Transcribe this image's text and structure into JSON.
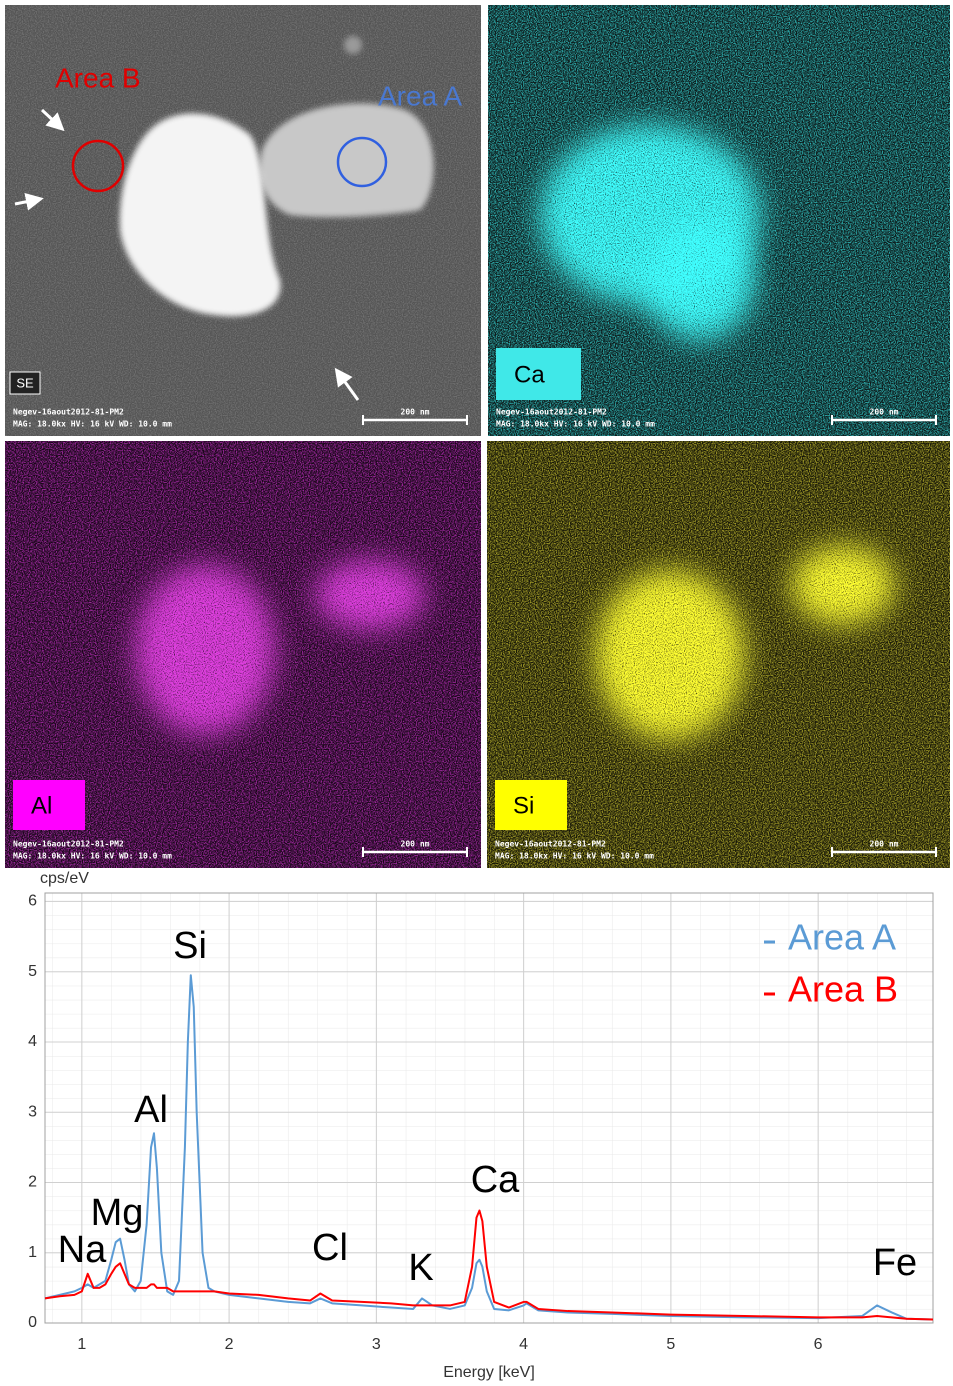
{
  "images": [
    {
      "label": "SE",
      "area_labels": [
        "Area B",
        "Area A"
      ],
      "footer": [
        "Negev-16aout2012-81-PM2",
        "MAG: 18.0kx   HV: 16 kV   WD: 10.0 mm"
      ],
      "scale_bar": "200 nm"
    },
    {
      "label": "Ca",
      "footer": [
        "Negev-16aout2012-81-PM2",
        "MAG: 18.0kx   HV: 16 kV   WD: 10.0 mm"
      ],
      "scale_bar": "200 nm"
    },
    {
      "label": "Al",
      "footer": [
        "Negev-16aout2012-81-PM2",
        "MAG: 18.0kx   HV: 16 kV   WD: 10.0 mm"
      ],
      "scale_bar": "200 nm"
    },
    {
      "label": "Si",
      "footer": [
        "Negev-16aout2012-81-PM2",
        "MAG: 18.0kx   HV: 16 kV   WD: 10.0 mm"
      ],
      "scale_bar": "200 nm"
    }
  ],
  "chart_data": {
    "type": "line",
    "y_label": "cps/eV",
    "x_label": "Energy [keV]",
    "xlim": [
      0.75,
      6.78
    ],
    "ylim": [
      0,
      6.12
    ],
    "xticks": [
      1,
      2,
      3,
      4,
      5,
      6
    ],
    "yticks": [
      0,
      1,
      2,
      3,
      4,
      5,
      6
    ],
    "grid": true,
    "legend": "upper right",
    "annotations": [
      "Na",
      "Mg",
      "Al",
      "Si",
      "Cl",
      "K",
      "Ca",
      "Fe"
    ],
    "x": [
      0.75,
      0.85,
      0.95,
      1.0,
      1.04,
      1.08,
      1.12,
      1.16,
      1.2,
      1.23,
      1.26,
      1.29,
      1.32,
      1.36,
      1.4,
      1.44,
      1.47,
      1.49,
      1.51,
      1.54,
      1.58,
      1.62,
      1.66,
      1.7,
      1.72,
      1.74,
      1.76,
      1.78,
      1.82,
      1.86,
      1.9,
      2.0,
      2.2,
      2.4,
      2.55,
      2.62,
      2.7,
      2.9,
      3.1,
      3.25,
      3.31,
      3.38,
      3.5,
      3.6,
      3.65,
      3.68,
      3.7,
      3.72,
      3.75,
      3.8,
      3.9,
      4.0,
      4.02,
      4.1,
      4.3,
      4.6,
      5.0,
      5.5,
      6.0,
      6.3,
      6.4,
      6.5,
      6.6,
      6.78
    ],
    "series": [
      {
        "name": "Area A",
        "color": "#5b9bd5",
        "values": [
          0.35,
          0.4,
          0.45,
          0.5,
          0.55,
          0.5,
          0.55,
          0.6,
          0.9,
          1.15,
          1.2,
          0.9,
          0.55,
          0.45,
          0.6,
          1.4,
          2.5,
          2.7,
          2.2,
          1.0,
          0.45,
          0.4,
          0.6,
          2.5,
          4.0,
          4.95,
          4.5,
          3.0,
          1.0,
          0.5,
          0.45,
          0.4,
          0.35,
          0.3,
          0.28,
          0.35,
          0.28,
          0.25,
          0.22,
          0.2,
          0.35,
          0.25,
          0.2,
          0.25,
          0.5,
          0.85,
          0.9,
          0.8,
          0.45,
          0.2,
          0.18,
          0.25,
          0.28,
          0.18,
          0.15,
          0.13,
          0.1,
          0.08,
          0.07,
          0.1,
          0.25,
          0.15,
          0.06,
          0.05
        ]
      },
      {
        "name": "Area B",
        "color": "#ff0000",
        "values": [
          0.35,
          0.38,
          0.4,
          0.45,
          0.7,
          0.5,
          0.5,
          0.55,
          0.7,
          0.8,
          0.85,
          0.7,
          0.55,
          0.5,
          0.5,
          0.5,
          0.55,
          0.55,
          0.5,
          0.5,
          0.5,
          0.45,
          0.45,
          0.45,
          0.45,
          0.45,
          0.45,
          0.45,
          0.45,
          0.45,
          0.45,
          0.42,
          0.4,
          0.35,
          0.32,
          0.42,
          0.32,
          0.3,
          0.28,
          0.25,
          0.25,
          0.25,
          0.25,
          0.3,
          0.8,
          1.5,
          1.6,
          1.45,
          0.8,
          0.3,
          0.22,
          0.3,
          0.3,
          0.2,
          0.17,
          0.15,
          0.12,
          0.1,
          0.08,
          0.08,
          0.1,
          0.08,
          0.06,
          0.05
        ]
      }
    ]
  }
}
